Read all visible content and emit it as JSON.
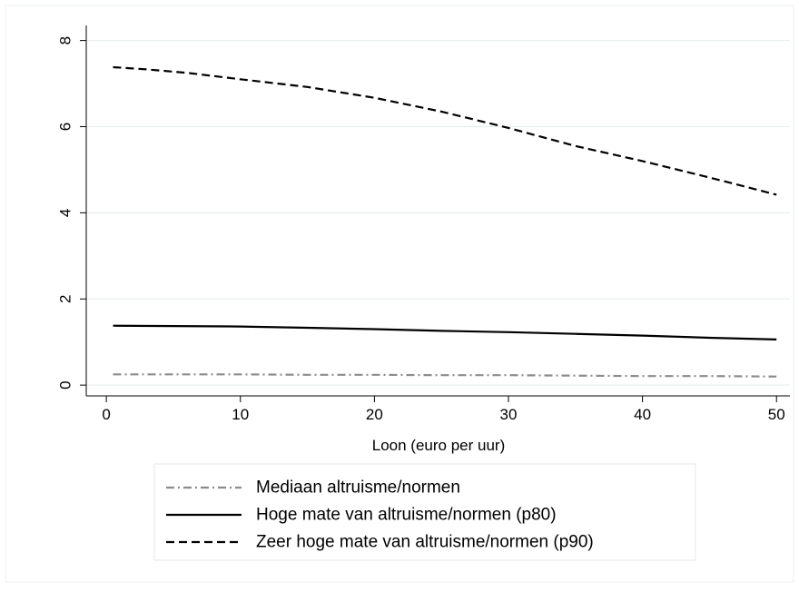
{
  "chart_data": {
    "type": "line",
    "title": "",
    "xlabel": "Loon (euro per uur)",
    "ylabel": "",
    "xlim": [
      -1.5,
      51
    ],
    "ylim": [
      -0.25,
      8.35
    ],
    "x_ticks": [
      0,
      10,
      20,
      30,
      40,
      50
    ],
    "y_ticks": [
      0,
      2,
      4,
      6,
      8
    ],
    "grid": true,
    "legend_position": "bottom",
    "series": [
      {
        "name": "Mediaan altruisme/normen",
        "color": "#8c8c8c",
        "dash": "dash-dot",
        "x": [
          0.5,
          5,
          10,
          15,
          20,
          25,
          30,
          35,
          40,
          45,
          50
        ],
        "y": [
          0.25,
          0.25,
          0.25,
          0.24,
          0.24,
          0.23,
          0.23,
          0.22,
          0.21,
          0.21,
          0.2
        ]
      },
      {
        "name": "Hoge mate van altruisme/normen (p80)",
        "color": "#000000",
        "dash": "solid",
        "x": [
          0.5,
          5,
          10,
          15,
          20,
          25,
          30,
          35,
          40,
          45,
          50
        ],
        "y": [
          1.38,
          1.37,
          1.36,
          1.33,
          1.3,
          1.26,
          1.23,
          1.19,
          1.15,
          1.1,
          1.06
        ]
      },
      {
        "name": "Zeer hoge mate van altruisme/normen (p90)",
        "color": "#000000",
        "dash": "dashed",
        "x": [
          0.5,
          3,
          6,
          10,
          15,
          20,
          25,
          30,
          35,
          40,
          45,
          50
        ],
        "y": [
          7.38,
          7.33,
          7.25,
          7.1,
          6.92,
          6.67,
          6.35,
          5.97,
          5.55,
          5.2,
          4.82,
          4.42
        ]
      }
    ]
  }
}
